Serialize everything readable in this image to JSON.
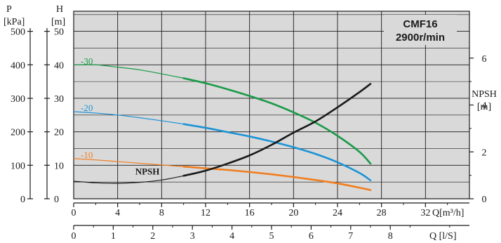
{
  "chart_data": {
    "type": "line",
    "title_lines": [
      "CMF16",
      "2900r/min"
    ],
    "axes": {
      "pressure": {
        "label_top": "P",
        "unit": "[kPa]",
        "ticks": [
          0,
          100,
          200,
          300,
          400,
          500
        ],
        "range": [
          0,
          560
        ]
      },
      "head": {
        "label_top": "H",
        "unit": "[m]",
        "ticks": [
          0,
          10,
          20,
          30,
          40,
          50
        ],
        "range": [
          0,
          56
        ]
      },
      "npsh": {
        "label_top": "NPSH",
        "unit": "[m]",
        "ticks": [
          0,
          2,
          4,
          6
        ],
        "range": [
          0,
          8
        ]
      },
      "flow_m3h": {
        "label": "Q[m³/h]",
        "ticks": [
          0,
          4,
          8,
          12,
          16,
          20,
          24,
          28,
          32
        ],
        "range": [
          0,
          36
        ]
      },
      "flow_ls": {
        "label": "Q [l/S]",
        "ticks": [
          0,
          1,
          2,
          3,
          4,
          5,
          6,
          7,
          8
        ],
        "range": [
          0,
          10
        ]
      }
    },
    "grid": true,
    "series": [
      {
        "name": "-30",
        "color": "#1a9a48",
        "axis": "head",
        "x": [
          0,
          2,
          4,
          6,
          8,
          10,
          12,
          14,
          16,
          18,
          20,
          22,
          24,
          26,
          27
        ],
        "y": [
          40,
          40,
          39.3,
          38.5,
          37.3,
          36,
          34.5,
          32.7,
          30.7,
          28.5,
          25.8,
          22.7,
          18.8,
          14,
          10.5
        ]
      },
      {
        "name": "-20",
        "color": "#1b93d6",
        "axis": "head",
        "x": [
          0,
          2,
          4,
          6,
          8,
          10,
          12,
          14,
          16,
          18,
          20,
          22,
          24,
          26,
          27
        ],
        "y": [
          26,
          25.6,
          25,
          24.2,
          23.3,
          22.3,
          21.2,
          19.9,
          18.6,
          17.1,
          15.4,
          13.4,
          10.9,
          7.7,
          5.5
        ]
      },
      {
        "name": "-10",
        "color": "#f07d1e",
        "axis": "head",
        "x": [
          0,
          2,
          4,
          6,
          8,
          10,
          12,
          14,
          16,
          18,
          20,
          22,
          24,
          26,
          27
        ],
        "y": [
          12,
          11.6,
          11.1,
          10.6,
          10.1,
          9.6,
          9.1,
          8.6,
          8,
          7.3,
          6.5,
          5.6,
          4.6,
          3.3,
          2.6
        ]
      },
      {
        "name": "NPSH",
        "color": "#1a1a1a",
        "axis": "npsh",
        "x": [
          0,
          2,
          4,
          6,
          8,
          10,
          12,
          14,
          16,
          18,
          20,
          22,
          24,
          26,
          27
        ],
        "y": [
          0.75,
          0.68,
          0.66,
          0.7,
          0.8,
          0.98,
          1.2,
          1.5,
          1.85,
          2.3,
          2.82,
          3.3,
          3.9,
          4.55,
          4.9
        ]
      }
    ]
  }
}
